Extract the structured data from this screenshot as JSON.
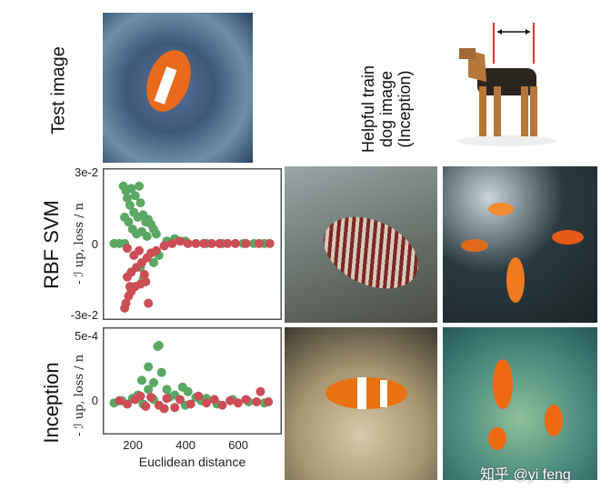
{
  "labels": {
    "test_image": "Test image",
    "helpful_line1": "Helpful train",
    "helpful_line2": "dog image",
    "helpful_line3": "(Inception)",
    "row_rbf": "RBF SVM",
    "row_inception": "Inception"
  },
  "watermark": "知乎 @yi feng",
  "colors": {
    "green": "#5aa864",
    "red": "#cc4d55"
  },
  "chart_data": [
    {
      "type": "scatter",
      "title": "",
      "row": "RBF SVM",
      "ylabel": "- ℐ up, loss / n",
      "xlabel": "",
      "xlim": [
        107,
        786
      ],
      "ylim": [
        -0.032,
        0.0315
      ],
      "yticks": [
        "3e-2",
        "0",
        "-3e-2"
      ],
      "ytick_values": [
        0.03,
        0,
        -0.03
      ],
      "series": [
        {
          "color": "green",
          "points": [
            [
              185,
              0.024
            ],
            [
              195,
              0.022
            ],
            [
              200,
              0.019
            ],
            [
              215,
              0.023
            ],
            [
              230,
              0.02
            ],
            [
              245,
              0.024
            ],
            [
              250,
              0.017
            ],
            [
              210,
              0.016
            ],
            [
              225,
              0.013
            ],
            [
              240,
              0.011
            ],
            [
              260,
              0.012
            ],
            [
              270,
              0.009
            ],
            [
              280,
              0.01
            ],
            [
              290,
              0.008
            ],
            [
              300,
              0.006
            ],
            [
              205,
              0.009
            ],
            [
              220,
              0.006
            ],
            [
              235,
              0.004
            ],
            [
              255,
              0.005
            ],
            [
              275,
              0.003
            ],
            [
              190,
              0.011
            ],
            [
              310,
              0.004
            ],
            [
              150,
              0
            ],
            [
              170,
              0
            ],
            [
              190,
              0
            ],
            [
              350,
              0.001
            ],
            [
              380,
              0.002
            ],
            [
              420,
              0.001
            ],
            [
              500,
              0
            ],
            [
              560,
              0
            ],
            [
              640,
              0
            ],
            [
              680,
              0
            ],
            [
              720,
              0
            ],
            [
              260,
              -0.015
            ],
            [
              250,
              -0.01
            ],
            [
              320,
              -0.005
            ],
            [
              300,
              -0.008
            ]
          ]
        },
        {
          "color": "red",
          "points": [
            [
              190,
              -0.027
            ],
            [
              195,
              -0.025
            ],
            [
              205,
              -0.022
            ],
            [
              215,
              -0.02
            ],
            [
              230,
              -0.018
            ],
            [
              250,
              -0.017
            ],
            [
              270,
              -0.016
            ],
            [
              280,
              -0.025
            ],
            [
              200,
              -0.014
            ],
            [
              215,
              -0.012
            ],
            [
              235,
              -0.01
            ],
            [
              255,
              -0.008
            ],
            [
              275,
              -0.006
            ],
            [
              290,
              -0.004
            ],
            [
              310,
              -0.003
            ],
            [
              225,
              -0.005
            ],
            [
              245,
              -0.003
            ],
            [
              340,
              -0.001
            ],
            [
              370,
              0
            ],
            [
              400,
              0.001
            ],
            [
              430,
              0
            ],
            [
              460,
              0
            ],
            [
              490,
              0
            ],
            [
              520,
              0
            ],
            [
              550,
              0
            ],
            [
              580,
              0
            ],
            [
              610,
              0
            ],
            [
              650,
              0
            ],
            [
              700,
              0
            ],
            [
              740,
              0
            ],
            [
              200,
              -0.002
            ],
            [
              265,
              -0.013
            ],
            [
              210,
              -0.018
            ]
          ]
        }
      ]
    },
    {
      "type": "scatter",
      "title": "",
      "row": "Inception",
      "ylabel": "- ℐ up, loss / n",
      "xlabel": "Euclidean distance",
      "xlim": [
        107,
        786
      ],
      "ylim": [
        -0.0003,
        0.00065
      ],
      "yticks": [
        "5e-4",
        "0"
      ],
      "ytick_values": [
        0.0005,
        0
      ],
      "xticks": [
        200,
        400,
        600
      ],
      "series": [
        {
          "color": "green",
          "points": [
            [
              315,
              0.00048
            ],
            [
              320,
              0.00049
            ],
            [
              280,
              0.0003
            ],
            [
              330,
              0.00025
            ],
            [
              255,
              0.00018
            ],
            [
              300,
              0.00016
            ],
            [
              280,
              0.0001
            ],
            [
              240,
              5e-05
            ],
            [
              350,
              0.0001
            ],
            [
              380,
              5e-05
            ],
            [
              410,
              0.00012
            ],
            [
              430,
              8e-05
            ],
            [
              460,
              3e-05
            ],
            [
              150,
              -2e-05
            ],
            [
              180,
              0
            ],
            [
              220,
              2e-05
            ],
            [
              260,
              -3e-05
            ],
            [
              300,
              1e-05
            ],
            [
              360,
              3e-05
            ],
            [
              420,
              -4e-05
            ],
            [
              480,
              0
            ],
            [
              540,
              -3e-05
            ],
            [
              600,
              1e-05
            ],
            [
              660,
              -1e-05
            ],
            [
              720,
              -2e-05
            ],
            [
              500,
              2e-05
            ]
          ]
        },
        {
          "color": "red",
          "points": [
            [
              170,
              0
            ],
            [
              200,
              -3e-05
            ],
            [
              230,
              1e-05
            ],
            [
              270,
              -5e-05
            ],
            [
              290,
              3e-05
            ],
            [
              320,
              -4e-05
            ],
            [
              350,
              2e-05
            ],
            [
              380,
              -6e-05
            ],
            [
              400,
              1e-05
            ],
            [
              440,
              -3e-05
            ],
            [
              470,
              4e-05
            ],
            [
              500,
              -2e-05
            ],
            [
              530,
              1e-05
            ],
            [
              560,
              -4e-05
            ],
            [
              590,
              0
            ],
            [
              620,
              -2e-05
            ],
            [
              650,
              1e-05
            ],
            [
              690,
              -1e-05
            ],
            [
              705,
              8e-05
            ],
            [
              735,
              -1e-05
            ],
            [
              250,
              4e-05
            ],
            [
              340,
              -7e-05
            ]
          ]
        }
      ]
    }
  ]
}
